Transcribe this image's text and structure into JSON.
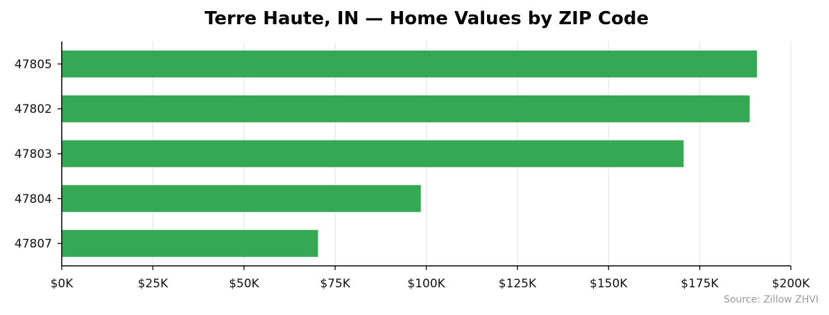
{
  "chart_data": {
    "type": "bar",
    "orientation": "horizontal",
    "title": "Terre Haute, IN — Home Values by ZIP Code",
    "categories": [
      "47805",
      "47802",
      "47803",
      "47804",
      "47807"
    ],
    "values": [
      190700,
      188700,
      170600,
      98500,
      70300
    ],
    "xlim": [
      0,
      200000
    ],
    "x_ticks": [
      0,
      25000,
      50000,
      75000,
      100000,
      125000,
      150000,
      175000,
      200000
    ],
    "x_tick_labels": [
      "$0K",
      "$25K",
      "$50K",
      "$75K",
      "$100K",
      "$125K",
      "$150K",
      "$175K",
      "$200K"
    ],
    "xlabel": "",
    "ylabel": "",
    "grid": "vertical",
    "bar_color": "#34a853",
    "source": "Source: Zillow ZHVI"
  }
}
